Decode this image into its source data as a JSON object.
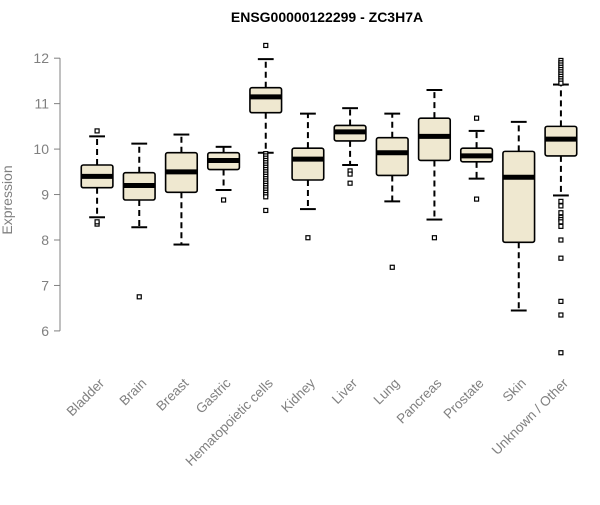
{
  "chart_data": {
    "type": "box",
    "title": "ENSG00000122299 - ZC3H7A",
    "xlabel": "",
    "ylabel": "Expression",
    "ylim": [
      5.25,
      12.4
    ],
    "yticks": [
      6,
      7,
      8,
      9,
      10,
      11,
      12
    ],
    "grid": false,
    "colors": {
      "box_fill": "#efe8d0",
      "stroke": "#000000",
      "axis": "#808080"
    },
    "categories": [
      "Bladder",
      "Brain",
      "Breast",
      "Gastric",
      "Hematopoietic cells",
      "Kidney",
      "Liver",
      "Lung",
      "Pancreas",
      "Prostate",
      "Skin",
      "Unknown / Other"
    ],
    "boxes": [
      {
        "whisker_low": 8.5,
        "q1": 9.15,
        "median": 9.4,
        "q3": 9.65,
        "whisker_high": 10.28,
        "outliers": [
          10.4,
          8.35,
          8.4
        ]
      },
      {
        "whisker_low": 8.28,
        "q1": 8.88,
        "median": 9.2,
        "q3": 9.48,
        "whisker_high": 10.12,
        "outliers": [
          6.75
        ]
      },
      {
        "whisker_low": 7.9,
        "q1": 9.05,
        "median": 9.5,
        "q3": 9.92,
        "whisker_high": 10.32,
        "outliers": []
      },
      {
        "whisker_low": 9.1,
        "q1": 9.55,
        "median": 9.75,
        "q3": 9.92,
        "whisker_high": 10.05,
        "outliers": [
          8.88
        ]
      },
      {
        "whisker_low": 9.92,
        "q1": 10.8,
        "median": 11.15,
        "q3": 11.35,
        "whisker_high": 11.98,
        "outliers": [
          12.28,
          9.9,
          9.85,
          9.8,
          9.75,
          9.7,
          9.65,
          9.6,
          9.55,
          9.5,
          9.45,
          9.4,
          9.35,
          9.3,
          9.25,
          9.2,
          9.15,
          9.1,
          9.05,
          9.0,
          8.95,
          8.65
        ]
      },
      {
        "whisker_low": 8.68,
        "q1": 9.32,
        "median": 9.78,
        "q3": 10.02,
        "whisker_high": 10.78,
        "outliers": [
          8.05
        ]
      },
      {
        "whisker_low": 9.65,
        "q1": 10.18,
        "median": 10.38,
        "q3": 10.52,
        "whisker_high": 10.9,
        "outliers": [
          9.52,
          9.45,
          9.25
        ]
      },
      {
        "whisker_low": 8.85,
        "q1": 9.42,
        "median": 9.92,
        "q3": 10.25,
        "whisker_high": 10.78,
        "outliers": [
          7.4
        ]
      },
      {
        "whisker_low": 8.45,
        "q1": 9.75,
        "median": 10.28,
        "q3": 10.68,
        "whisker_high": 11.3,
        "outliers": [
          8.05
        ]
      },
      {
        "whisker_low": 9.35,
        "q1": 9.72,
        "median": 9.85,
        "q3": 10.02,
        "whisker_high": 10.4,
        "outliers": [
          10.68,
          8.9
        ]
      },
      {
        "whisker_low": 6.45,
        "q1": 7.95,
        "median": 9.38,
        "q3": 9.95,
        "whisker_high": 10.6,
        "outliers": []
      },
      {
        "whisker_low": 8.98,
        "q1": 9.85,
        "median": 10.22,
        "q3": 10.5,
        "whisker_high": 11.42,
        "outliers": [
          11.95,
          11.9,
          11.85,
          11.8,
          11.75,
          11.7,
          11.65,
          11.6,
          11.55,
          11.5,
          11.45,
          8.85,
          8.75,
          8.6,
          8.5,
          8.45,
          8.4,
          8.3,
          8.0,
          7.6,
          6.65,
          6.35,
          5.52
        ]
      }
    ]
  }
}
